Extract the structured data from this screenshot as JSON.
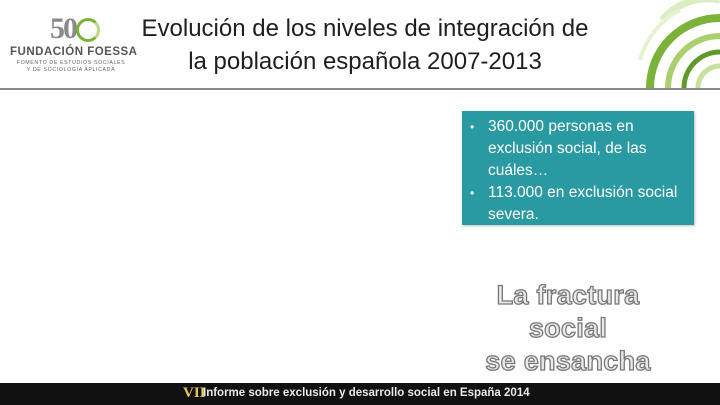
{
  "logo": {
    "number": "50",
    "org_name": "FUNDACIÓN FOESSA",
    "subtitle_line1": "Fomento de Estudios Sociales",
    "subtitle_line2": "y de Sociología Aplicada"
  },
  "header": {
    "title_line1": "Evolución de los niveles de integración de",
    "title_line2": "la población española 2007-2013"
  },
  "info_box": {
    "bullets": [
      "360.000 personas en exclusión social, de las cuáles…",
      "113.000 en exclusión social severa."
    ]
  },
  "highlight": {
    "line1": "La fractura social",
    "line2": "se ensancha"
  },
  "footer": {
    "roman": "VII",
    "text": "Informe sobre exclusión y desarrollo social en España 2014"
  },
  "colors": {
    "accent_teal": "#2a9aa2",
    "accent_green": "#7bb23a",
    "footer_bg": "#111111"
  }
}
